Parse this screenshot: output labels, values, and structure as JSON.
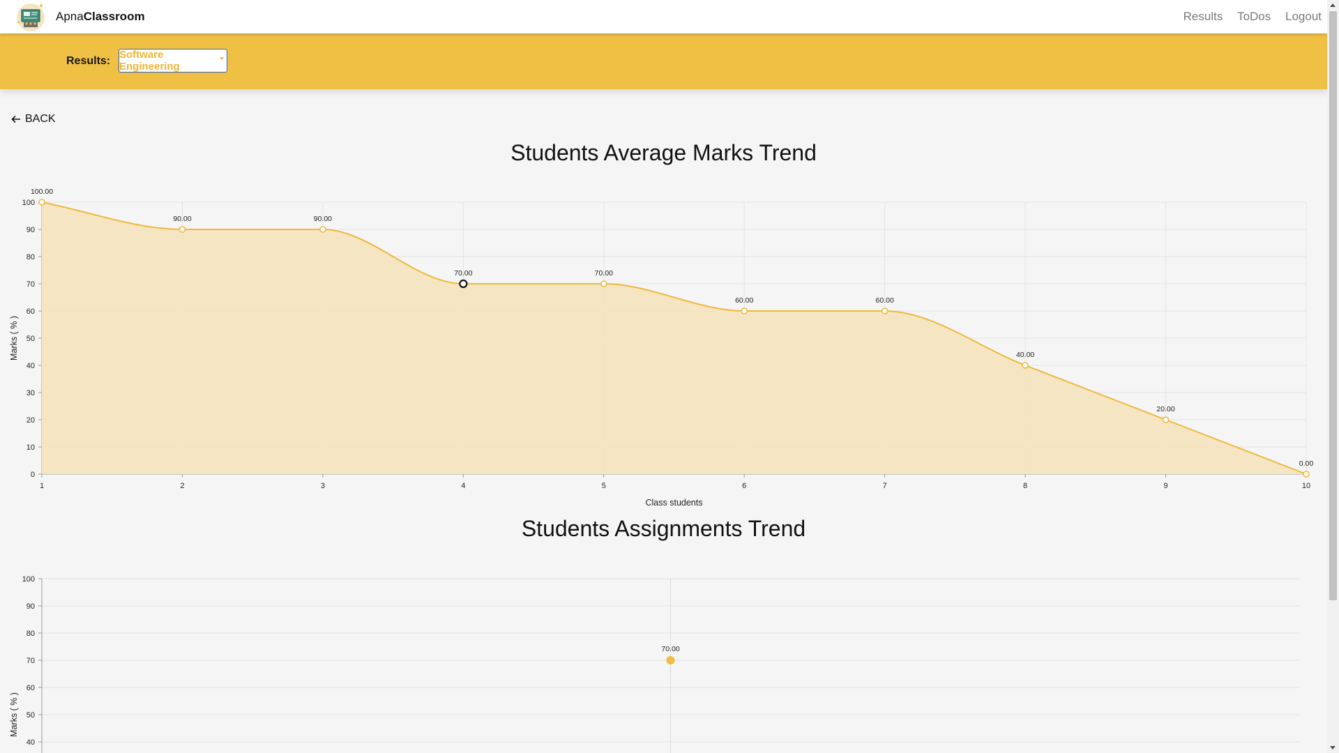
{
  "navbar": {
    "brand_part1": "Apna",
    "brand_part2": "Classroom",
    "links": [
      "Results",
      "ToDos",
      "Logout"
    ]
  },
  "results_bar": {
    "label": "Results:",
    "selected_course": "Software Engineering"
  },
  "back_label": "BACK",
  "colors": {
    "accent": "#f0c045",
    "line": "#eeb93a",
    "fill": "#f4e4bf",
    "select_border": "#2f66b8"
  },
  "chart_data": [
    {
      "type": "area",
      "title": "Students Average Marks Trend",
      "xlabel": "Class students",
      "ylabel": "Marks ( % )",
      "x": [
        1,
        2,
        3,
        4,
        5,
        6,
        7,
        8,
        9,
        10
      ],
      "series": [
        {
          "values": [
            100,
            90,
            90,
            70,
            70,
            60,
            60,
            40,
            20,
            0
          ]
        }
      ],
      "data_labels": [
        "100.00",
        "90.00",
        "90.00",
        "70.00",
        "70.00",
        "60.00",
        "60.00",
        "40.00",
        "20.00",
        "0.00"
      ],
      "y_ticks": [
        0,
        10,
        20,
        30,
        40,
        50,
        60,
        70,
        80,
        90,
        100
      ],
      "ylim": [
        0,
        100
      ],
      "grid": true
    },
    {
      "type": "scatter",
      "title": "Students Assignments Trend",
      "xlabel": "",
      "ylabel": "Marks ( % )",
      "series": [
        {
          "values": [
            70
          ]
        }
      ],
      "data_labels": [
        "70.00"
      ],
      "y_ticks": [
        40,
        50,
        60,
        70,
        80,
        90,
        100
      ],
      "ylim": [
        0,
        100
      ],
      "grid": true
    }
  ]
}
